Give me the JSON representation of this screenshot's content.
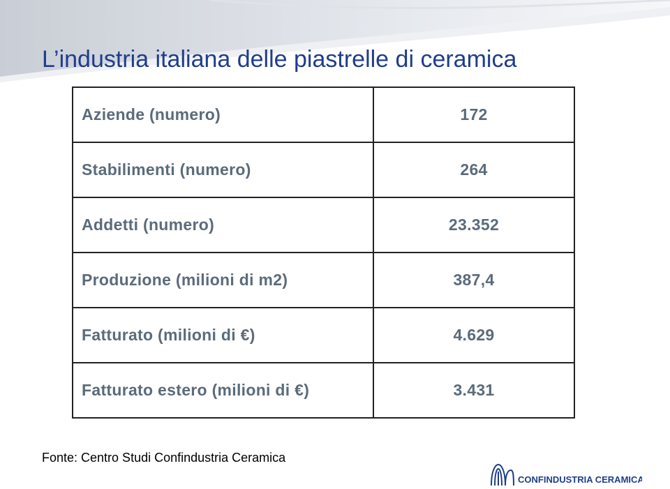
{
  "header": {
    "title": "L’industria italiana delle piastrelle di ceramica"
  },
  "table": {
    "rows": [
      [
        "Aziende  (numero)",
        "172"
      ],
      [
        "Stabilimenti (numero)",
        "264"
      ],
      [
        "Addetti (numero)",
        "23.352"
      ],
      [
        "Produzione (milioni di m2)",
        "387,4"
      ],
      [
        "Fatturato (milioni di €)",
        "4.629"
      ],
      [
        "Fatturato estero (milioni di €)",
        "3.431"
      ]
    ]
  },
  "footer": {
    "source": "Fonte: Centro Studi Confindustria Ceramica",
    "logo": "CONFINDUSTRIA CERAMICA"
  }
}
